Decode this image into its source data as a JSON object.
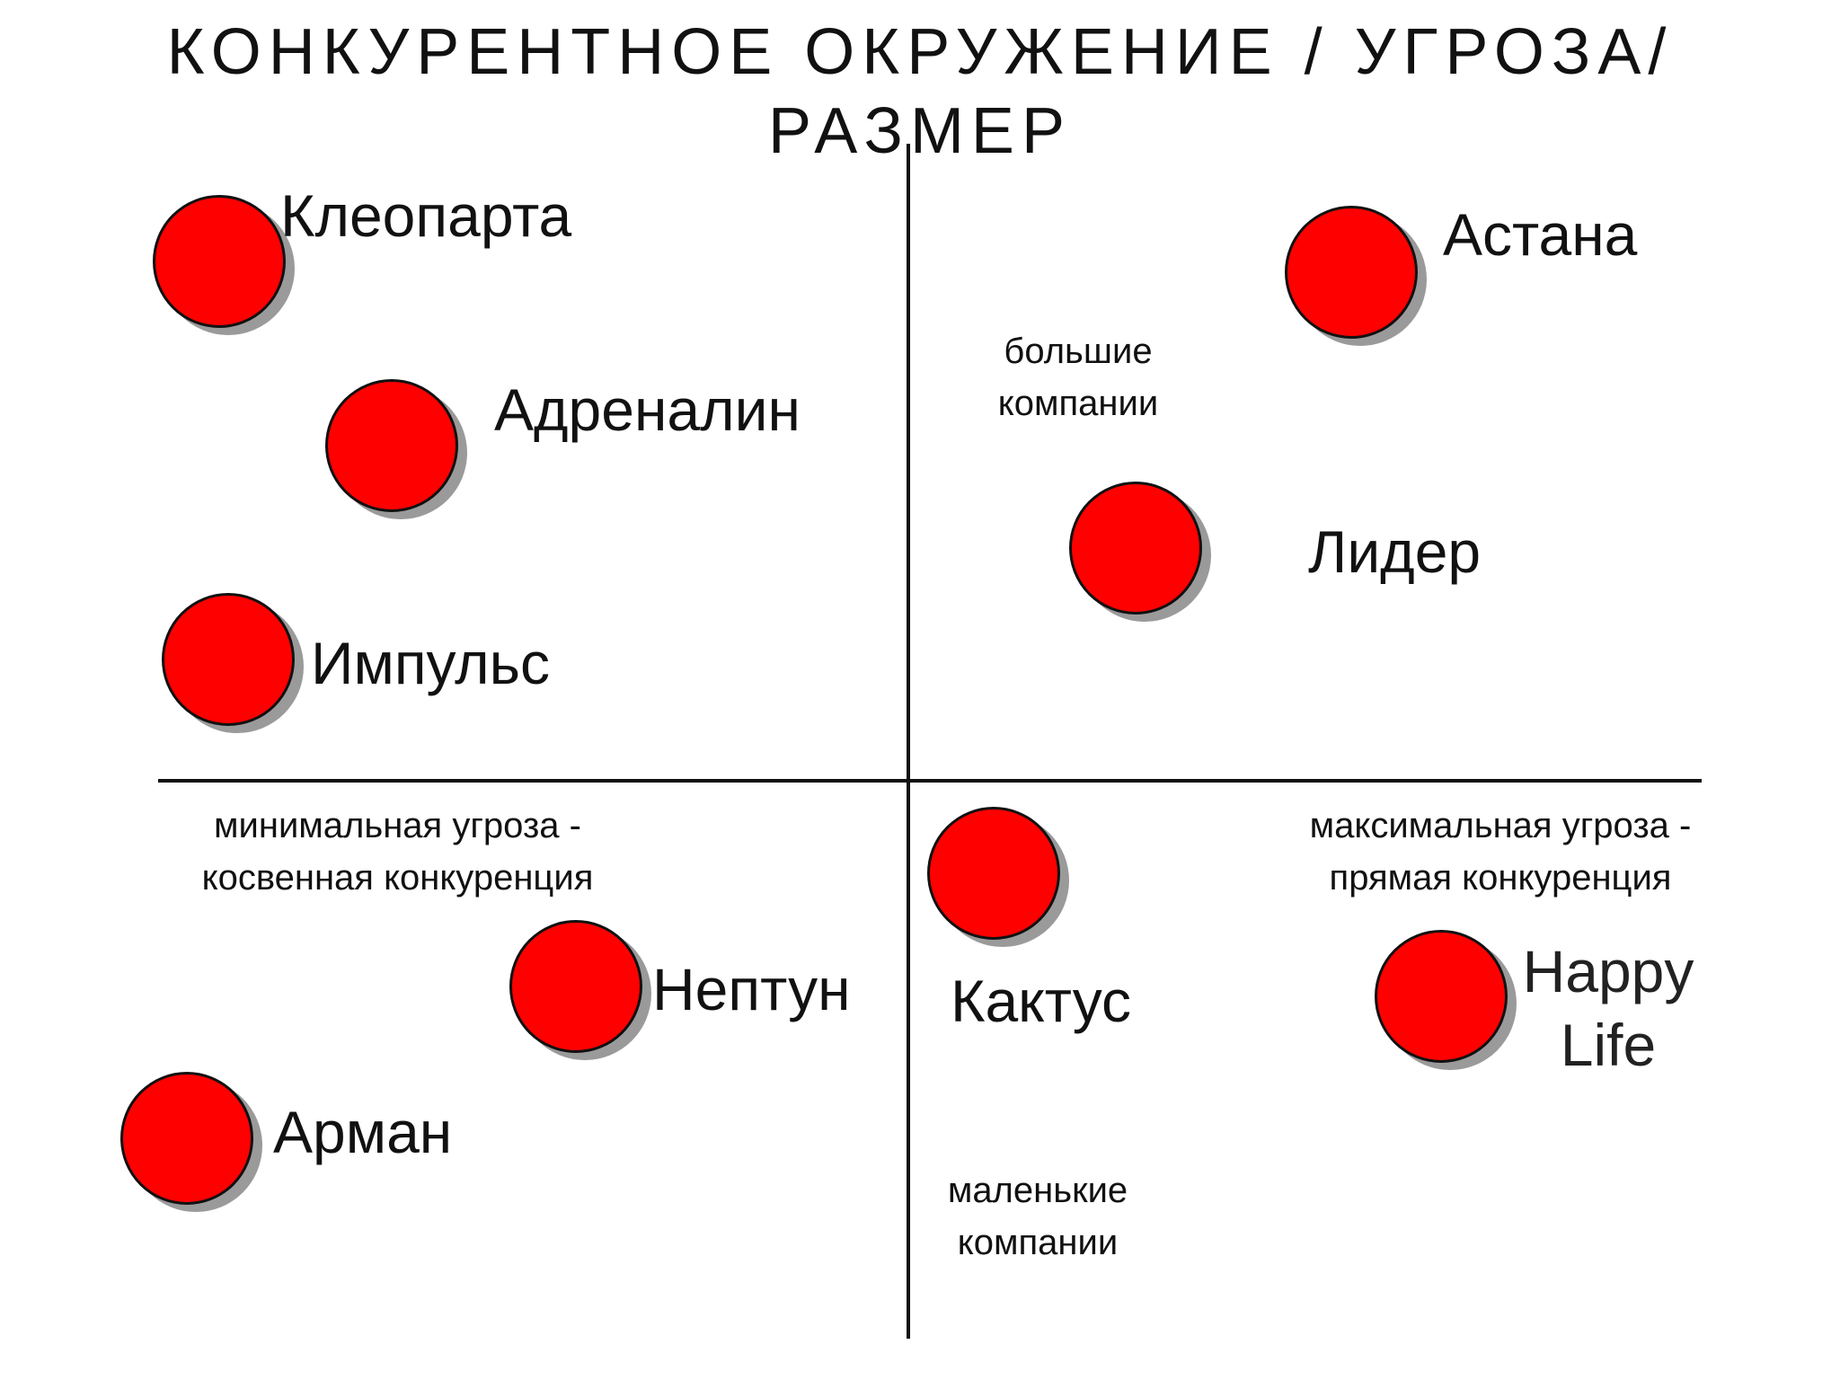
{
  "title": {
    "line1": "КОНКУРЕНТНОЕ ОКРУЖЕНИЕ / УГРОЗА/",
    "line2": "РАЗМЕР"
  },
  "quadrant_labels": {
    "top": "большие компании",
    "bottom": "маленькие компании",
    "left": "минимальная угроза - косвенная конкуренция",
    "right": "максимальная угроза - прямая конкуренция"
  },
  "competitors": [
    {
      "name": "Клеопарта"
    },
    {
      "name": "Адреналин"
    },
    {
      "name": "Импульс"
    },
    {
      "name": "Астана"
    },
    {
      "name": "Лидер"
    },
    {
      "name": "Нептун"
    },
    {
      "name": "Арман"
    },
    {
      "name": "Кактус"
    },
    {
      "name": "Happy Life"
    }
  ],
  "colors": {
    "dot": "#ff0000",
    "dot_shadow": "#9a9a9a",
    "axis": "#111111"
  }
}
